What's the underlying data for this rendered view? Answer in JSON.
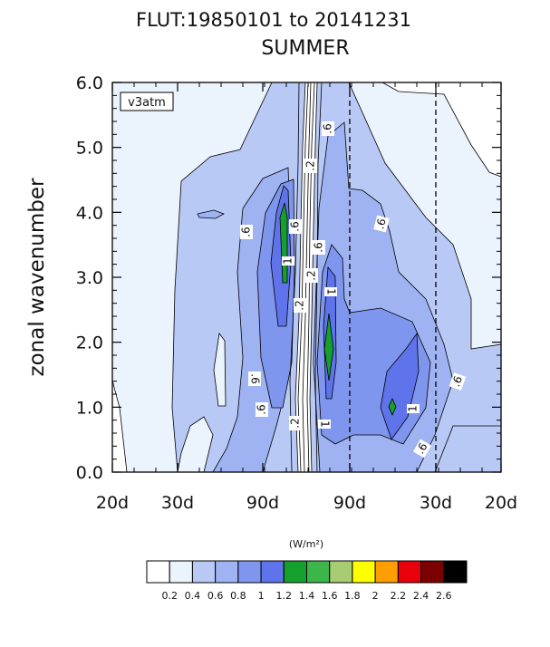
{
  "chart_data": {
    "type": "contour",
    "title": "FLUT:19850101 to 20141231",
    "subtitle": "SUMMER",
    "ylabel": "zonal wavenumber",
    "xlabel": "",
    "ylim": [
      0,
      6
    ],
    "x_tick_labels": [
      "20d",
      "30d",
      "90d",
      "90d",
      "30d",
      "20d"
    ],
    "y_tick_labels": [
      "0.0",
      "1.0",
      "2.0",
      "3.0",
      "4.0",
      "5.0",
      "6.0"
    ],
    "y_ticks": [
      0,
      1,
      2,
      3,
      4,
      5,
      6
    ],
    "dashed_lines_at_labels": [
      "90d",
      "30d"
    ],
    "experiment_label": "v3atm",
    "contour_labels": [
      {
        "text": ".6",
        "rot": -90
      },
      {
        "text": ".2",
        "rot": -90
      },
      {
        "text": ".6",
        "rot": -90
      },
      {
        "text": ".6",
        "rot": -90
      },
      {
        "text": "1",
        "rot": -90
      },
      {
        "text": ".6",
        "rot": -90
      },
      {
        "text": ".2",
        "rot": -90
      },
      {
        "text": ".2",
        "rot": -90
      },
      {
        "text": "1",
        "rot": 90
      },
      {
        "text": ".6",
        "rot": -75
      },
      {
        "text": ".6",
        "rot": 90
      },
      {
        "text": ".6",
        "rot": -90
      },
      {
        "text": ".2",
        "rot": -90
      },
      {
        "text": "1",
        "rot": 90
      },
      {
        "text": "1",
        "rot": -90
      },
      {
        "text": ".6",
        "rot": -70
      },
      {
        "text": ".6",
        "rot": -60
      }
    ],
    "legend": {
      "units": "(W/m²)",
      "levels": [
        "0.2",
        "0.4",
        "0.6",
        "0.8",
        "1",
        "1.2",
        "1.4",
        "1.6",
        "1.8",
        "2",
        "2.2",
        "2.4",
        "2.6"
      ],
      "colors": [
        "#ffffff",
        "#ebf4fc",
        "#b8c9f5",
        "#9fb3f3",
        "#7f96ee",
        "#5f73ea",
        "#15a02e",
        "#3cb54a",
        "#a8cc73",
        "#ffff00",
        "#ff9e00",
        "#e8000b",
        "#7d0000",
        "#000000"
      ]
    }
  }
}
